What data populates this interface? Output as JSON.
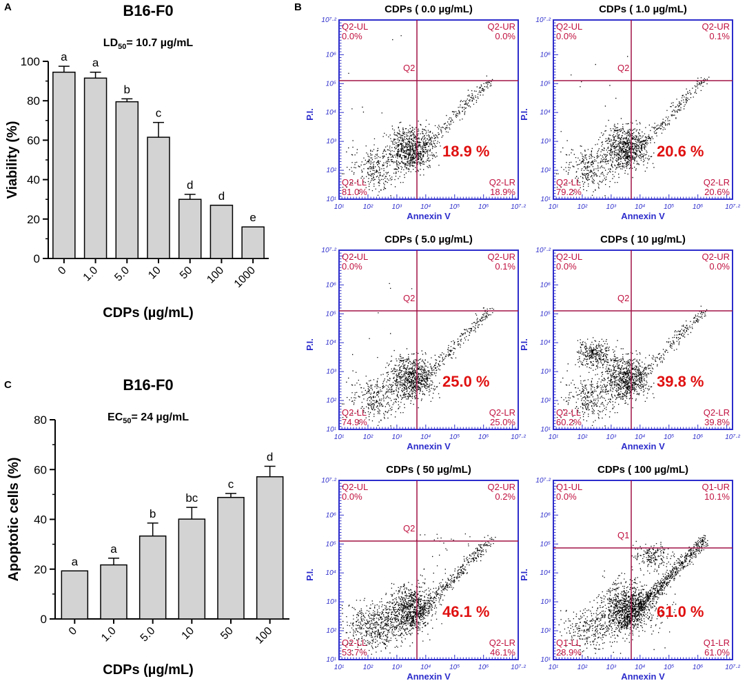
{
  "panel_labels": {
    "a": "A",
    "b": "B",
    "c": "C"
  },
  "chart_data": [
    {
      "type": "bar",
      "panel": "A",
      "title": "B16-F0",
      "subtitle_prefix": "LD",
      "subtitle_sub": "50",
      "subtitle_suffix": "= 10.7 µg/mL",
      "xlabel": "CDPs  (µg/mL)",
      "ylabel": "Viability  (%)",
      "categories": [
        "0",
        "1.0",
        "5.0",
        "10",
        "50",
        "100",
        "1000"
      ],
      "values": [
        94.5,
        91.5,
        79.5,
        61.5,
        30,
        27,
        16
      ],
      "errors": [
        3,
        3,
        1.5,
        7.5,
        2.5,
        0,
        0
      ],
      "letters": [
        "a",
        "a",
        "b",
        "c",
        "d",
        "d",
        "e"
      ],
      "ylim": [
        0,
        100
      ],
      "yticks": [
        "0",
        "20",
        "40",
        "60",
        "80",
        "100"
      ],
      "bar_color": "#d3d3d3"
    },
    {
      "type": "bar",
      "panel": "C",
      "title": "B16-F0",
      "subtitle_prefix": "EC",
      "subtitle_sub": "50",
      "subtitle_suffix": "= 24 µg/mL",
      "xlabel": "CDPs  (µg/mL)",
      "ylabel": "Apoptotic cells (%)",
      "categories": [
        "0",
        "1.0",
        "5.0",
        "10",
        "50",
        "100"
      ],
      "values": [
        19.3,
        21.7,
        33.3,
        40.1,
        48.8,
        57.1
      ],
      "errors": [
        0,
        2.7,
        5.2,
        4.7,
        1.6,
        4.2
      ],
      "letters": [
        "a",
        "a",
        "b",
        "bc",
        "c",
        "d"
      ],
      "ylim": [
        0,
        80
      ],
      "yticks": [
        "0",
        "20",
        "40",
        "60",
        "80"
      ],
      "bar_color": "#d3d3d3"
    },
    {
      "type": "scatter",
      "panel": "B",
      "description": "Annexin V / P.I. flow cytometry dot plots",
      "xlabel": "Annexin V",
      "ylabel": "P.I.",
      "axis_ticks": [
        "10¹",
        "10²",
        "10³",
        "10⁴",
        "10⁵",
        "10⁶",
        "10⁷·²"
      ],
      "plots": [
        {
          "title": "CDPs  ( 0.0  µg/mL)",
          "prefix": "Q2",
          "ul": "0.0%",
          "ur": "0.0%",
          "ll": "81.0%",
          "lr": "18.9%",
          "big": "18.9 %",
          "pattern": "base"
        },
        {
          "title": "CDPs  ( 1.0  µg/mL)",
          "prefix": "Q2",
          "ul": "0.0%",
          "ur": "0.1%",
          "ll": "79.2%",
          "lr": "20.6%",
          "big": "20.6 %",
          "pattern": "base"
        },
        {
          "title": "CDPs  ( 5.0  µg/mL)",
          "prefix": "Q2",
          "ul": "0.0%",
          "ur": "0.1%",
          "ll": "74.9%",
          "lr": "25.0%",
          "big": "25.0 %",
          "pattern": "base"
        },
        {
          "title": "CDPs  ( 10  µg/mL)",
          "prefix": "Q2",
          "ul": "0.0%",
          "ur": "0.0%",
          "ll": "60.2%",
          "lr": "39.8%",
          "big": "39.8 %",
          "pattern": "blob"
        },
        {
          "title": "CDPs  ( 50  µg/mL)",
          "prefix": "Q2",
          "ul": "0.0%",
          "ur": "0.2%",
          "ll": "53.7%",
          "lr": "46.1%",
          "big": "46.1 %",
          "pattern": "spread"
        },
        {
          "title": "CDPs  ( 100  µg/mL)",
          "prefix": "Q1",
          "ul": "0.0%",
          "ur": "10.1%",
          "ll": "28.9%",
          "lr": "61.0%",
          "big": "61.0 %",
          "pattern": "late"
        }
      ]
    }
  ]
}
